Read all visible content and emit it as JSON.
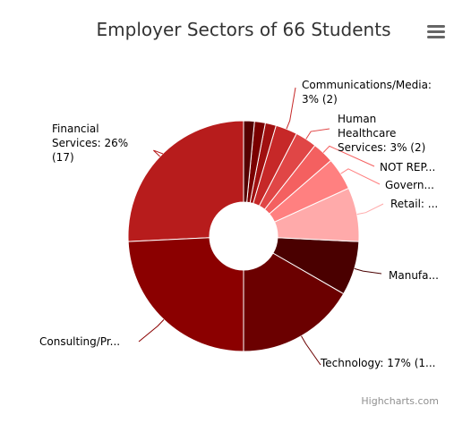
{
  "chart_data": {
    "type": "pie",
    "title": "Employer Sectors of 66 Students",
    "inner_hole": true,
    "slices": [
      {
        "name": "Financial Services",
        "value": 17,
        "percent": "26%",
        "color": "#B71C1C",
        "label_lines": [
          "Financial",
          "Services: 26%",
          "(17)"
        ]
      },
      {
        "name": "Consulting/Pr...",
        "value": 16,
        "percent": "",
        "color": "#8B0000",
        "label_lines": [
          "Consulting/Pr..."
        ]
      },
      {
        "name": "Technology",
        "value": 11,
        "percent": "17%",
        "color": "#6B0000",
        "label_lines": [
          "Technology: 17% (1..."
        ]
      },
      {
        "name": "Manufa...",
        "value": 5,
        "percent": "",
        "color": "#4A0000",
        "label_lines": [
          "Manufa..."
        ]
      },
      {
        "name": "Retail",
        "value": 5,
        "percent": "",
        "color": "#FFAAAA",
        "label_lines": [
          "Retail: ..."
        ]
      },
      {
        "name": "Govern...",
        "value": 3,
        "percent": "",
        "color": "#FF8080",
        "label_lines": [
          "Govern..."
        ]
      },
      {
        "name": "NOT REP...",
        "value": 2,
        "percent": "",
        "color": "#F46060",
        "label_lines": [
          "NOT REP..."
        ]
      },
      {
        "name": "Human Healthcare Services",
        "value": 2,
        "percent": "3%",
        "color": "#E04646",
        "label_lines": [
          "Human",
          "Healthcare",
          "Services: 3% (2)"
        ]
      },
      {
        "name": "Communications/Media",
        "value": 2,
        "percent": "3%",
        "color": "#C62828",
        "label_lines": [
          "Communications/Media:",
          "3% (2)"
        ]
      },
      {
        "name": "",
        "value": 1,
        "percent": "",
        "color": "#A01010",
        "label_lines": []
      },
      {
        "name": "",
        "value": 1,
        "percent": "",
        "color": "#7A0000",
        "label_lines": []
      },
      {
        "name": "",
        "value": 1,
        "percent": "",
        "color": "#550000",
        "label_lines": []
      }
    ]
  },
  "ui": {
    "menu_icon": "hamburger-menu-icon",
    "credits": "Highcharts.com"
  }
}
